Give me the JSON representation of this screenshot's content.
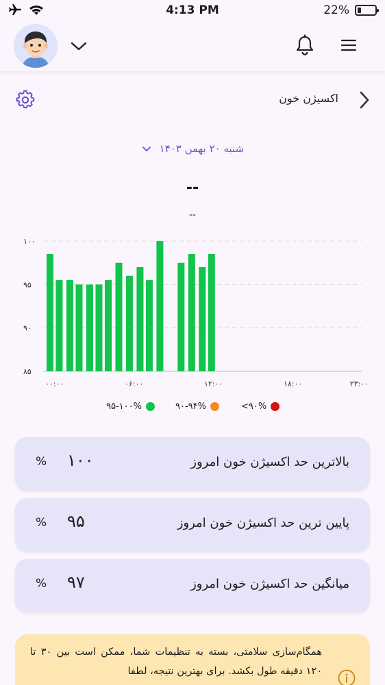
{
  "status_bar": {
    "time": "4:13 PM",
    "battery": "22%",
    "battery_level": 0.22
  },
  "header": {
    "avatar_icon": "boy-avatar-icon",
    "dropdown_icon": "chevron-down-icon",
    "notification_icon": "bell-icon",
    "menu_icon": "hamburger-menu-icon"
  },
  "page": {
    "title": "اکسیژن خون",
    "settings_icon": "gear-icon",
    "back_icon": "chevron-right-icon"
  },
  "date": {
    "label": "شنبه ۲۰ بهمن ۱۴۰۳"
  },
  "summary": {
    "value": "--",
    "subtitle": "--"
  },
  "chart_data": {
    "type": "bar",
    "x_domain": [
      0,
      24
    ],
    "x_ticks": [
      {
        "value": 0,
        "label": "۰۰:۰۰"
      },
      {
        "value": 6,
        "label": "۰۶:۰۰"
      },
      {
        "value": 12,
        "label": "۱۲:۰۰"
      },
      {
        "value": 18,
        "label": "۱۸:۰۰"
      },
      {
        "value": 23,
        "label": "۲۳:۰۰"
      }
    ],
    "ylim": [
      85,
      100
    ],
    "y_ticks": [
      {
        "value": 100,
        "label": "۱۰۰"
      },
      {
        "value": 95,
        "label": "۹۵"
      },
      {
        "value": 90,
        "label": "۹۰"
      },
      {
        "value": 85,
        "label": "۸۵"
      }
    ],
    "bars": [
      {
        "x": 0.1,
        "value": 98.5
      },
      {
        "x": 0.8,
        "value": 95.5
      },
      {
        "x": 1.6,
        "value": 95.5
      },
      {
        "x": 2.3,
        "value": 95
      },
      {
        "x": 3.1,
        "value": 95
      },
      {
        "x": 3.8,
        "value": 95
      },
      {
        "x": 4.5,
        "value": 95.5
      },
      {
        "x": 5.3,
        "value": 97.5
      },
      {
        "x": 6.1,
        "value": 96
      },
      {
        "x": 6.9,
        "value": 97
      },
      {
        "x": 7.6,
        "value": 95.5
      },
      {
        "x": 8.4,
        "value": 100
      },
      {
        "x": 10.0,
        "value": 97.5
      },
      {
        "x": 10.8,
        "value": 98.5
      },
      {
        "x": 11.6,
        "value": 97
      },
      {
        "x": 12.3,
        "value": 98.5
      }
    ],
    "bar_color": "#12c44c",
    "grid": true,
    "legend": [
      {
        "label": "۹۵-۱۰۰%",
        "color": "#12c44c"
      },
      {
        "label": "۹۰-۹۴%",
        "color": "#f6891f"
      },
      {
        "label": "<۹۰%",
        "color": "#d61414"
      }
    ]
  },
  "stats": [
    {
      "label": "بالاترین حد اکسیژن خون امروز",
      "value": "۱۰۰",
      "unit": "%"
    },
    {
      "label": "پایین ترین حد اکسیژن خون امروز",
      "value": "۹۵",
      "unit": "%"
    },
    {
      "label": "میانگین حد اکسیژن خون امروز",
      "value": "۹۷",
      "unit": "%"
    }
  ],
  "notice": {
    "text": "همگام‌سازی سلامتی، بسته به تنظیمات شما، ممکن است بین ۳۰ تا ۱۲۰ دقیقه طول بکشد. برای بهترین نتیجه، لطفا",
    "icon": "info-icon"
  }
}
